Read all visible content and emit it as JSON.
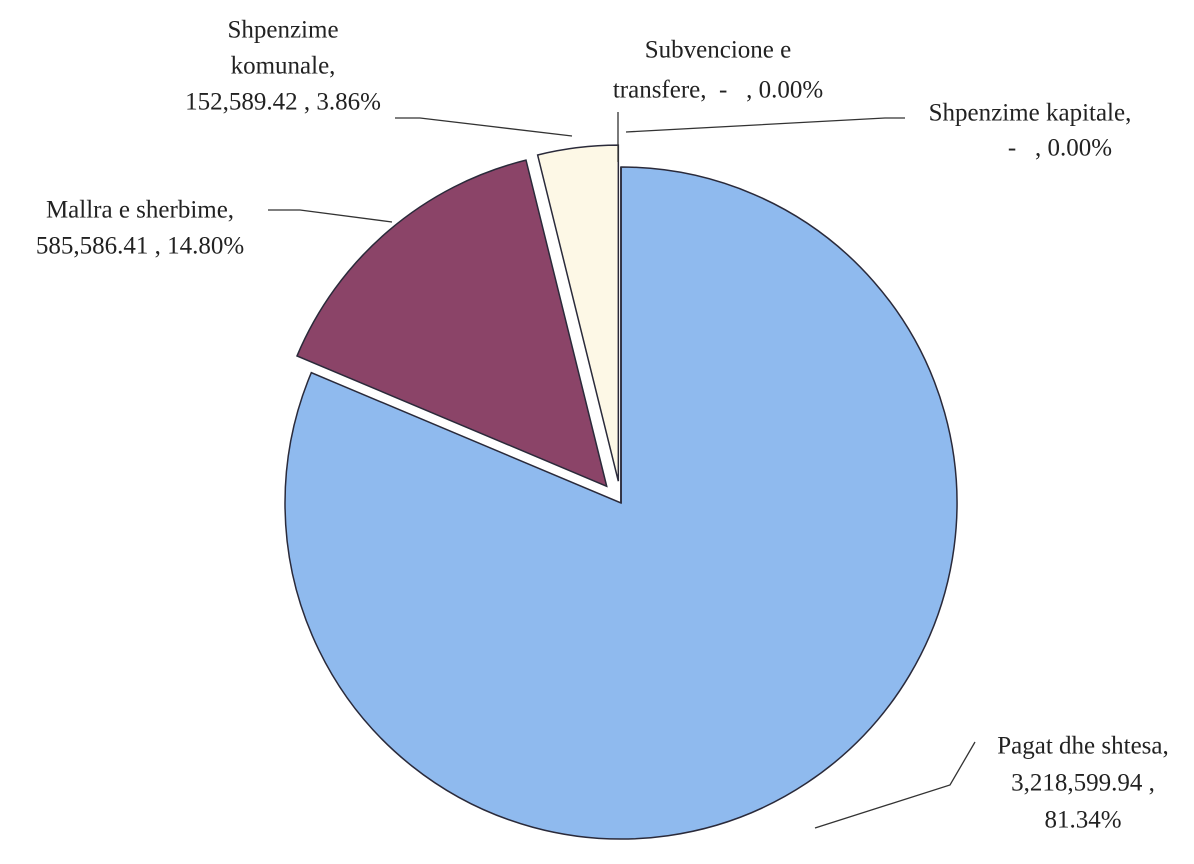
{
  "chart_data": {
    "type": "pie",
    "values": [
      81.34,
      14.8,
      3.86,
      0.0,
      0.0
    ],
    "label_lines": [
      [
        "Pagat dhe shtesa,",
        "3,218,599.94 ,",
        "81.34%"
      ],
      [
        "Mallra e sherbime,",
        "585,586.41 , 14.80%"
      ],
      [
        "Shpenzime",
        "komunale,",
        "152,589.42 , 3.86%"
      ],
      [
        "Subvencione e",
        "transfere,  -   , 0.00%"
      ],
      [
        "Shpenzime kapitale,",
        "-   , 0.00%"
      ]
    ],
    "colors": [
      "#8fbaee",
      "#8b4468",
      "#fdf8e6",
      "#fdf8e6",
      "#fdf8e6"
    ],
    "exploded": [
      false,
      true,
      true,
      false,
      false
    ]
  }
}
